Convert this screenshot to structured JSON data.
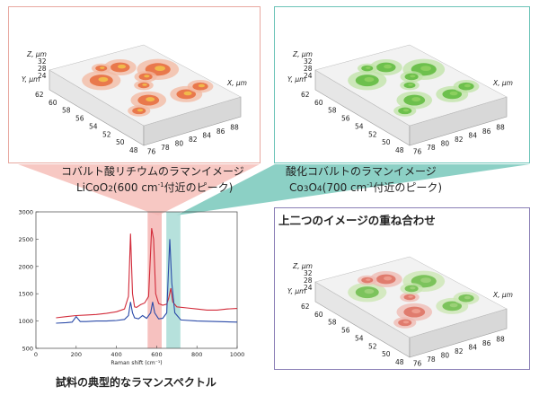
{
  "panels": {
    "licoo2": {
      "caption_line1": "コバルト酸リチウムのラマンイメージ",
      "caption_formula": "LiCoO",
      "caption_formula_sub": "2",
      "caption_open": "(600 cm",
      "caption_sup": "-1",
      "caption_rest": "付近のピーク)",
      "color": "#e0502a",
      "axes": {
        "z_label": "Z, μm",
        "y_label": "Y, μm",
        "x_label": "X, μm",
        "z_ticks": [
          "32",
          "28",
          "24"
        ],
        "y_ticks": [
          "62",
          "60",
          "58",
          "56",
          "54",
          "52",
          "50",
          "48"
        ],
        "x_ticks": [
          "76",
          "78",
          "80",
          "82",
          "84",
          "86",
          "88"
        ]
      }
    },
    "co3o4": {
      "caption_line1": "酸化コバルトのラマンイメージ",
      "caption_formula": "Co",
      "caption_formula_sub1": "3",
      "caption_formula_mid": "O",
      "caption_formula_sub2": "4",
      "caption_open": "(700 cm",
      "caption_sup": "-1",
      "caption_rest": "付近のピーク)",
      "color": "#4caf2a",
      "axes": {
        "z_label": "Z, μm",
        "y_label": "Y, μm",
        "x_label": "X, μm",
        "z_ticks": [
          "32",
          "28",
          "24"
        ],
        "y_ticks": [
          "62",
          "60",
          "58",
          "56",
          "54",
          "52",
          "50",
          "48"
        ],
        "x_ticks": [
          "76",
          "78",
          "80",
          "82",
          "84",
          "86",
          "88"
        ]
      }
    },
    "overlay": {
      "title": "上二つのイメージの重ね合わせ",
      "axes": {
        "z_label": "Z, μm",
        "y_label": "Y, μm",
        "x_label": "X, μm",
        "z_ticks": [
          "32",
          "28",
          "24"
        ],
        "y_ticks": [
          "62",
          "60",
          "58",
          "56",
          "54",
          "52",
          "50",
          "48"
        ],
        "x_ticks": [
          "76",
          "78",
          "80",
          "82",
          "84",
          "86",
          "88"
        ]
      }
    }
  },
  "spectrum_title": "試料の典型的なラマンスペクトル",
  "chart_data": {
    "type": "line",
    "xlabel": "Raman shift (cm⁻¹)",
    "ylabel": "",
    "xlim": [
      0,
      1000
    ],
    "ylim": [
      500,
      3000
    ],
    "x_ticks": [
      0,
      200,
      400,
      600,
      800,
      1000
    ],
    "y_ticks": [
      500,
      1000,
      1500,
      2000,
      2500,
      3000
    ],
    "highlight_bands": [
      {
        "from": 555,
        "to": 625,
        "color": "#f4b6b4"
      },
      {
        "from": 648,
        "to": 718,
        "color": "#a9dcd6"
      }
    ],
    "series": [
      {
        "color": "#d22b3a",
        "x": [
          100,
          150,
          200,
          250,
          300,
          350,
          400,
          440,
          460,
          470,
          480,
          490,
          500,
          520,
          540,
          560,
          575,
          585,
          595,
          610,
          630,
          650,
          660,
          670,
          680,
          700,
          750,
          800,
          850,
          900,
          950,
          1000
        ],
        "y": [
          1060,
          1080,
          1100,
          1110,
          1120,
          1140,
          1170,
          1220,
          1450,
          2600,
          1500,
          1260,
          1250,
          1300,
          1330,
          1450,
          2700,
          2500,
          1500,
          1320,
          1290,
          1310,
          1420,
          1600,
          1350,
          1260,
          1240,
          1220,
          1200,
          1200,
          1220,
          1230
        ]
      },
      {
        "color": "#2a4aa8",
        "x": [
          100,
          150,
          180,
          200,
          220,
          250,
          300,
          350,
          400,
          440,
          460,
          470,
          480,
          490,
          510,
          530,
          550,
          570,
          580,
          590,
          610,
          630,
          650,
          665,
          675,
          690,
          720,
          800,
          900,
          1000
        ],
        "y": [
          960,
          970,
          980,
          1080,
          990,
          990,
          1000,
          1000,
          1010,
          1030,
          1100,
          1350,
          1150,
          1060,
          1040,
          1100,
          1050,
          1150,
          1350,
          1150,
          1040,
          1050,
          1150,
          2500,
          1700,
          1150,
          1020,
          1000,
          990,
          980
        ]
      }
    ]
  }
}
